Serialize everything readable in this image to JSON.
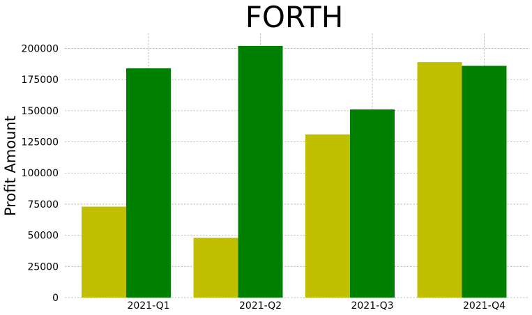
{
  "chart_data": {
    "type": "bar",
    "title": "FORTH",
    "xlabel": "",
    "ylabel": "Profit Amount",
    "categories": [
      "2021-Q1",
      "2021-Q2",
      "2021-Q3",
      "2021-Q4"
    ],
    "series": [
      {
        "color": "#bfbf00",
        "values": [
          73000,
          48000,
          131000,
          189000
        ]
      },
      {
        "color": "#008000",
        "values": [
          184000,
          202000,
          151000,
          186000
        ]
      }
    ],
    "ylim": [
      0,
      212000
    ],
    "yticks": [
      0,
      25000,
      50000,
      75000,
      100000,
      125000,
      150000,
      175000,
      200000
    ],
    "grid": true,
    "legend": "none"
  }
}
